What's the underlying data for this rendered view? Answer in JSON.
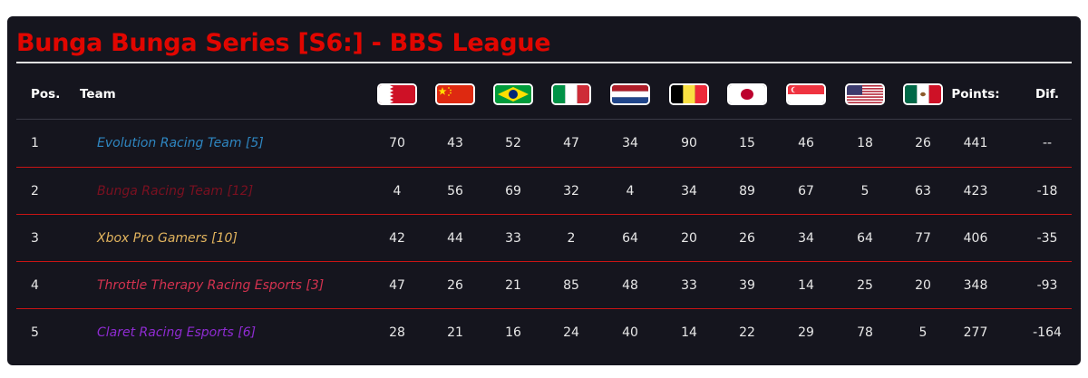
{
  "title": "Bunga Bunga Series [S6:] - BBS League",
  "header": {
    "pos": "Pos.",
    "team": "Team",
    "points": "Points:",
    "dif": "Dif."
  },
  "flags": [
    {
      "icon": "bahrain-flag-icon"
    },
    {
      "icon": "china-flag-icon"
    },
    {
      "icon": "brazil-flag-icon"
    },
    {
      "icon": "italy-flag-icon"
    },
    {
      "icon": "netherlands-flag-icon"
    },
    {
      "icon": "belgium-flag-icon"
    },
    {
      "icon": "japan-flag-icon"
    },
    {
      "icon": "singapore-flag-icon"
    },
    {
      "icon": "usa-flag-icon"
    },
    {
      "icon": "mexico-flag-icon"
    }
  ],
  "colors": {
    "accent": "#e10600",
    "separator": "#c81414",
    "header_separator": "#3a3a45",
    "background": "#15151e"
  },
  "rows": [
    {
      "pos": "1",
      "team": "Evolution Racing Team [5]",
      "team_color": "#2e86c1",
      "scores": [
        "70",
        "43",
        "52",
        "47",
        "34",
        "90",
        "15",
        "46",
        "18",
        "26"
      ],
      "points": "441",
      "dif": "--"
    },
    {
      "pos": "2",
      "team": "Bunga Racing Team [12]",
      "team_color": "#7a1020",
      "scores": [
        "4",
        "56",
        "69",
        "32",
        "4",
        "34",
        "89",
        "67",
        "5",
        "63"
      ],
      "points": "423",
      "dif": "-18"
    },
    {
      "pos": "3",
      "team": "Xbox Pro Gamers [10]",
      "team_color": "#e2b45e",
      "scores": [
        "42",
        "44",
        "33",
        "2",
        "64",
        "20",
        "26",
        "34",
        "64",
        "77"
      ],
      "points": "406",
      "dif": "-35"
    },
    {
      "pos": "4",
      "team": "Throttle Therapy Racing Esports [3]",
      "team_color": "#d4324f",
      "scores": [
        "47",
        "26",
        "21",
        "85",
        "48",
        "33",
        "39",
        "14",
        "25",
        "20"
      ],
      "points": "348",
      "dif": "-93"
    },
    {
      "pos": "5",
      "team": "Claret Racing Esports [6]",
      "team_color": "#8e2bd1",
      "scores": [
        "28",
        "21",
        "16",
        "24",
        "40",
        "14",
        "22",
        "29",
        "78",
        "5"
      ],
      "points": "277",
      "dif": "-164"
    }
  ]
}
